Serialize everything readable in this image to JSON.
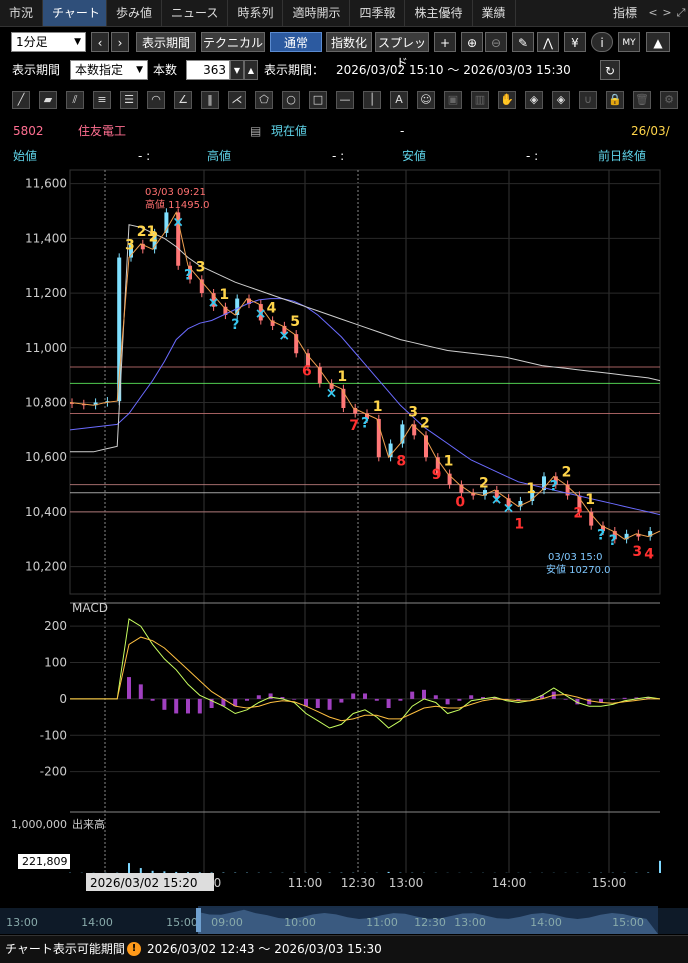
{
  "tabs": [
    "市況",
    "チャート",
    "歩み値",
    "ニュース",
    "時系列",
    "適時開示",
    "四季報",
    "株主優待",
    "業績",
    "指標"
  ],
  "tab_arrows": [
    "<",
    ">"
  ],
  "toolbar": {
    "interval": "1分足",
    "display_period_btn": "表示期間",
    "technical_btn": "テクニカル",
    "normal_btn": "通常",
    "index_btn": "指数化",
    "spread_btn": "スプレッド",
    "plus": "+",
    "yen": "¥",
    "info": "i",
    "my": "MY"
  },
  "period_row": {
    "label": "表示期間",
    "mode": "本数指定",
    "count_label": "本数",
    "count": "363",
    "range_label": "表示期間：",
    "range": "2026/03/02 15:10 〜 2026/03/03 15:30"
  },
  "draw_tools": [
    "line",
    "ray",
    "channel",
    "fib-h",
    "fib-v",
    "arc",
    "fan",
    "vlines",
    "pitchfork",
    "pentagon",
    "circle",
    "rect",
    "hline",
    "vline",
    "text",
    "icon",
    "stamp",
    "bank",
    "hand",
    "tag1",
    "tag2",
    "magnet",
    "lock",
    "trash",
    "settings"
  ],
  "stock": {
    "code": "5802",
    "name": "住友電工",
    "current_label": "現在値",
    "current_value": "-",
    "date": "26/03/",
    "open_label": "始値",
    "open_value": "-  :",
    "high_label": "高値",
    "high_value": "-  :",
    "low_label": "安値",
    "low_value": "-  :",
    "prev_label": "前日終値"
  },
  "colors": {
    "accent_blue": "#2c5aa0",
    "candle_up": "#7fe0ff",
    "candle_down": "#ff7777",
    "marker_yellow": "#ffd54a",
    "marker_red": "#ff3030",
    "marker_cyan": "#37c8f0"
  },
  "chart_data": [
    {
      "type": "line",
      "name": "price",
      "y_ticks": [
        "11,600",
        "11,400",
        "11,200",
        "11,000",
        "10,800",
        "10,600",
        "10,400",
        "10,200"
      ],
      "x_ticks": [
        "14:00",
        "15:00",
        "11:00",
        "12:30",
        "13:00",
        "14:00",
        "15:00"
      ],
      "ylim": [
        10100,
        11650
      ],
      "series": [
        {
          "name": "price",
          "values": [
            10800,
            10795,
            10790,
            10800,
            10805,
            11330,
            11380,
            11360,
            11420,
            11495,
            11300,
            11250,
            11200,
            11150,
            11120,
            11180,
            11160,
            11100,
            11080,
            11050,
            10980,
            10930,
            10870,
            10850,
            10780,
            10760,
            10740,
            10600,
            10650,
            10720,
            10680,
            10600,
            10540,
            10500,
            10470,
            10460,
            10480,
            10450,
            10420,
            10440,
            10480,
            10530,
            10500,
            10460,
            10400,
            10350,
            10330,
            10300,
            10320,
            10310,
            10330
          ]
        },
        {
          "values": [
            10700,
            10705,
            10710,
            10715,
            10720,
            10760,
            10820,
            10880,
            10950,
            11030,
            11070,
            11090,
            11100,
            11120,
            11140,
            11160,
            11175,
            11180,
            11180,
            11170,
            11150,
            11120,
            11080,
            11040,
            10990,
            10940,
            10890,
            10840,
            10790,
            10750,
            10710,
            10680,
            10650,
            10620,
            10590,
            10570,
            10550,
            10530,
            10510,
            10500,
            10490,
            10480,
            10470,
            10460,
            10450,
            10440,
            10430,
            10420,
            10410,
            10400,
            10390
          ]
        },
        {
          "values": [
            10620,
            10620,
            10620,
            10630,
            10640,
            11450,
            11440,
            11420,
            11400,
            11370,
            11330,
            11300,
            11280,
            11260,
            11240,
            11225,
            11210,
            11195,
            11180,
            11165,
            11150,
            11135,
            11120,
            11105,
            11090,
            11075,
            11060,
            11045,
            11030,
            11020,
            11010,
            11000,
            10990,
            10985,
            10980,
            10975,
            10970,
            10965,
            10955,
            10945,
            10935,
            10930,
            10925,
            10920,
            10915,
            10910,
            10905,
            10900,
            10895,
            10890,
            10880
          ]
        }
      ],
      "annotations": {
        "high_time": "03/03 09:21",
        "high_text": "高値 11495.0",
        "low_time": "03/03 15:0",
        "low_text": "安値 10270.0"
      },
      "markers": [
        {
          "t": "3",
          "c": "yellow"
        },
        {
          "t": "21",
          "c": "yellow"
        },
        {
          "t": "2",
          "c": "yellow"
        },
        {
          "t": "×",
          "c": "cyan"
        },
        {
          "t": "?",
          "c": "cyan"
        },
        {
          "t": "3",
          "c": "yellow"
        },
        {
          "t": "×",
          "c": "cyan"
        },
        {
          "t": "1",
          "c": "yellow"
        },
        {
          "t": "?",
          "c": "cyan"
        },
        {
          "t": "×",
          "c": "cyan"
        },
        {
          "t": "4",
          "c": "yellow"
        },
        {
          "t": "×",
          "c": "cyan"
        },
        {
          "t": "5",
          "c": "yellow"
        },
        {
          "t": "6",
          "c": "red"
        },
        {
          "t": "×",
          "c": "cyan"
        },
        {
          "t": "1",
          "c": "yellow"
        },
        {
          "t": "7",
          "c": "red"
        },
        {
          "t": "?",
          "c": "cyan"
        },
        {
          "t": "1",
          "c": "yellow"
        },
        {
          "t": "8",
          "c": "red"
        },
        {
          "t": "3",
          "c": "yellow"
        },
        {
          "t": "2",
          "c": "yellow"
        },
        {
          "t": "9",
          "c": "red"
        },
        {
          "t": "1",
          "c": "yellow"
        },
        {
          "t": "0",
          "c": "red"
        },
        {
          "t": "2",
          "c": "yellow"
        },
        {
          "t": "×",
          "c": "cyan"
        },
        {
          "t": "×",
          "c": "cyan"
        },
        {
          "t": "1",
          "c": "red"
        },
        {
          "t": "1",
          "c": "yellow"
        },
        {
          "t": "?",
          "c": "cyan"
        },
        {
          "t": "2",
          "c": "yellow"
        },
        {
          "t": "2",
          "c": "red"
        },
        {
          "t": "1",
          "c": "yellow"
        },
        {
          "t": "?",
          "c": "cyan"
        },
        {
          "t": "?",
          "c": "cyan"
        },
        {
          "t": "3",
          "c": "red"
        },
        {
          "t": "4",
          "c": "red"
        }
      ]
    },
    {
      "type": "line",
      "name": "MACD",
      "title": "MACD",
      "y_ticks": [
        "200",
        "100",
        "0",
        "-100",
        "-200"
      ],
      "ylim": [
        -300,
        250
      ],
      "series": [
        {
          "values": [
            0,
            0,
            0,
            0,
            0,
            220,
            200,
            150,
            110,
            80,
            40,
            10,
            -5,
            -20,
            -40,
            -30,
            -10,
            5,
            0,
            -10,
            -40,
            -60,
            -80,
            -70,
            -40,
            -30,
            -50,
            -80,
            -60,
            -20,
            0,
            -10,
            -40,
            -30,
            -5,
            0,
            5,
            -5,
            -10,
            -5,
            10,
            30,
            10,
            -10,
            -20,
            -20,
            -15,
            -5,
            0,
            5,
            0
          ]
        },
        {
          "values": [
            0,
            0,
            0,
            0,
            0,
            150,
            170,
            160,
            140,
            110,
            80,
            50,
            20,
            0,
            -20,
            -25,
            -20,
            -10,
            -5,
            -8,
            -20,
            -35,
            -50,
            -60,
            -55,
            -45,
            -45,
            -55,
            -55,
            -40,
            -25,
            -20,
            -25,
            -25,
            -15,
            -5,
            0,
            -2,
            -5,
            -5,
            0,
            10,
            12,
            5,
            -5,
            -10,
            -12,
            -8,
            -4,
            0,
            0
          ]
        }
      ],
      "histogram": [
        0,
        0,
        0,
        0,
        0,
        60,
        40,
        -5,
        -30,
        -40,
        -40,
        -40,
        -25,
        -20,
        -20,
        -5,
        10,
        15,
        5,
        -2,
        -20,
        -25,
        -30,
        -10,
        15,
        15,
        -5,
        -25,
        -5,
        20,
        25,
        10,
        -15,
        -5,
        10,
        5,
        5,
        -3,
        -5,
        0,
        10,
        20,
        -2,
        -15,
        -15,
        -10,
        -3,
        3,
        4,
        5,
        0
      ]
    },
    {
      "type": "bar",
      "name": "volume",
      "title": "出来高",
      "y_ticks": [
        "1,000,000"
      ],
      "current_label": "221,809",
      "values": [
        5000,
        4000,
        3000,
        5000,
        6000,
        180000,
        90000,
        40000,
        30000,
        20000,
        15000,
        12000,
        9000,
        8000,
        7000,
        6000,
        5000,
        5000,
        4000,
        4000,
        4000,
        5000,
        6000,
        6000,
        5000,
        4000,
        3000,
        20000,
        6000,
        5000,
        4000,
        4000,
        3000,
        3000,
        3000,
        3000,
        3000,
        3000,
        3000,
        3000,
        3000,
        3000,
        3000,
        3000,
        4000,
        4000,
        5000,
        5000,
        6000,
        8000,
        221809
      ]
    },
    {
      "type": "area",
      "name": "navigator",
      "x_ticks": [
        "13:00",
        "14:00",
        "15:00",
        "09:00",
        "10:00",
        "11:00",
        "12:30",
        "13:00",
        "14:00",
        "15:00"
      ]
    }
  ],
  "crosshair_label": "2026/03/02 15:20",
  "footer": {
    "label": "チャート表示可能期間",
    "range": "2026/03/02 12:43 〜 2026/03/03 15:30"
  }
}
